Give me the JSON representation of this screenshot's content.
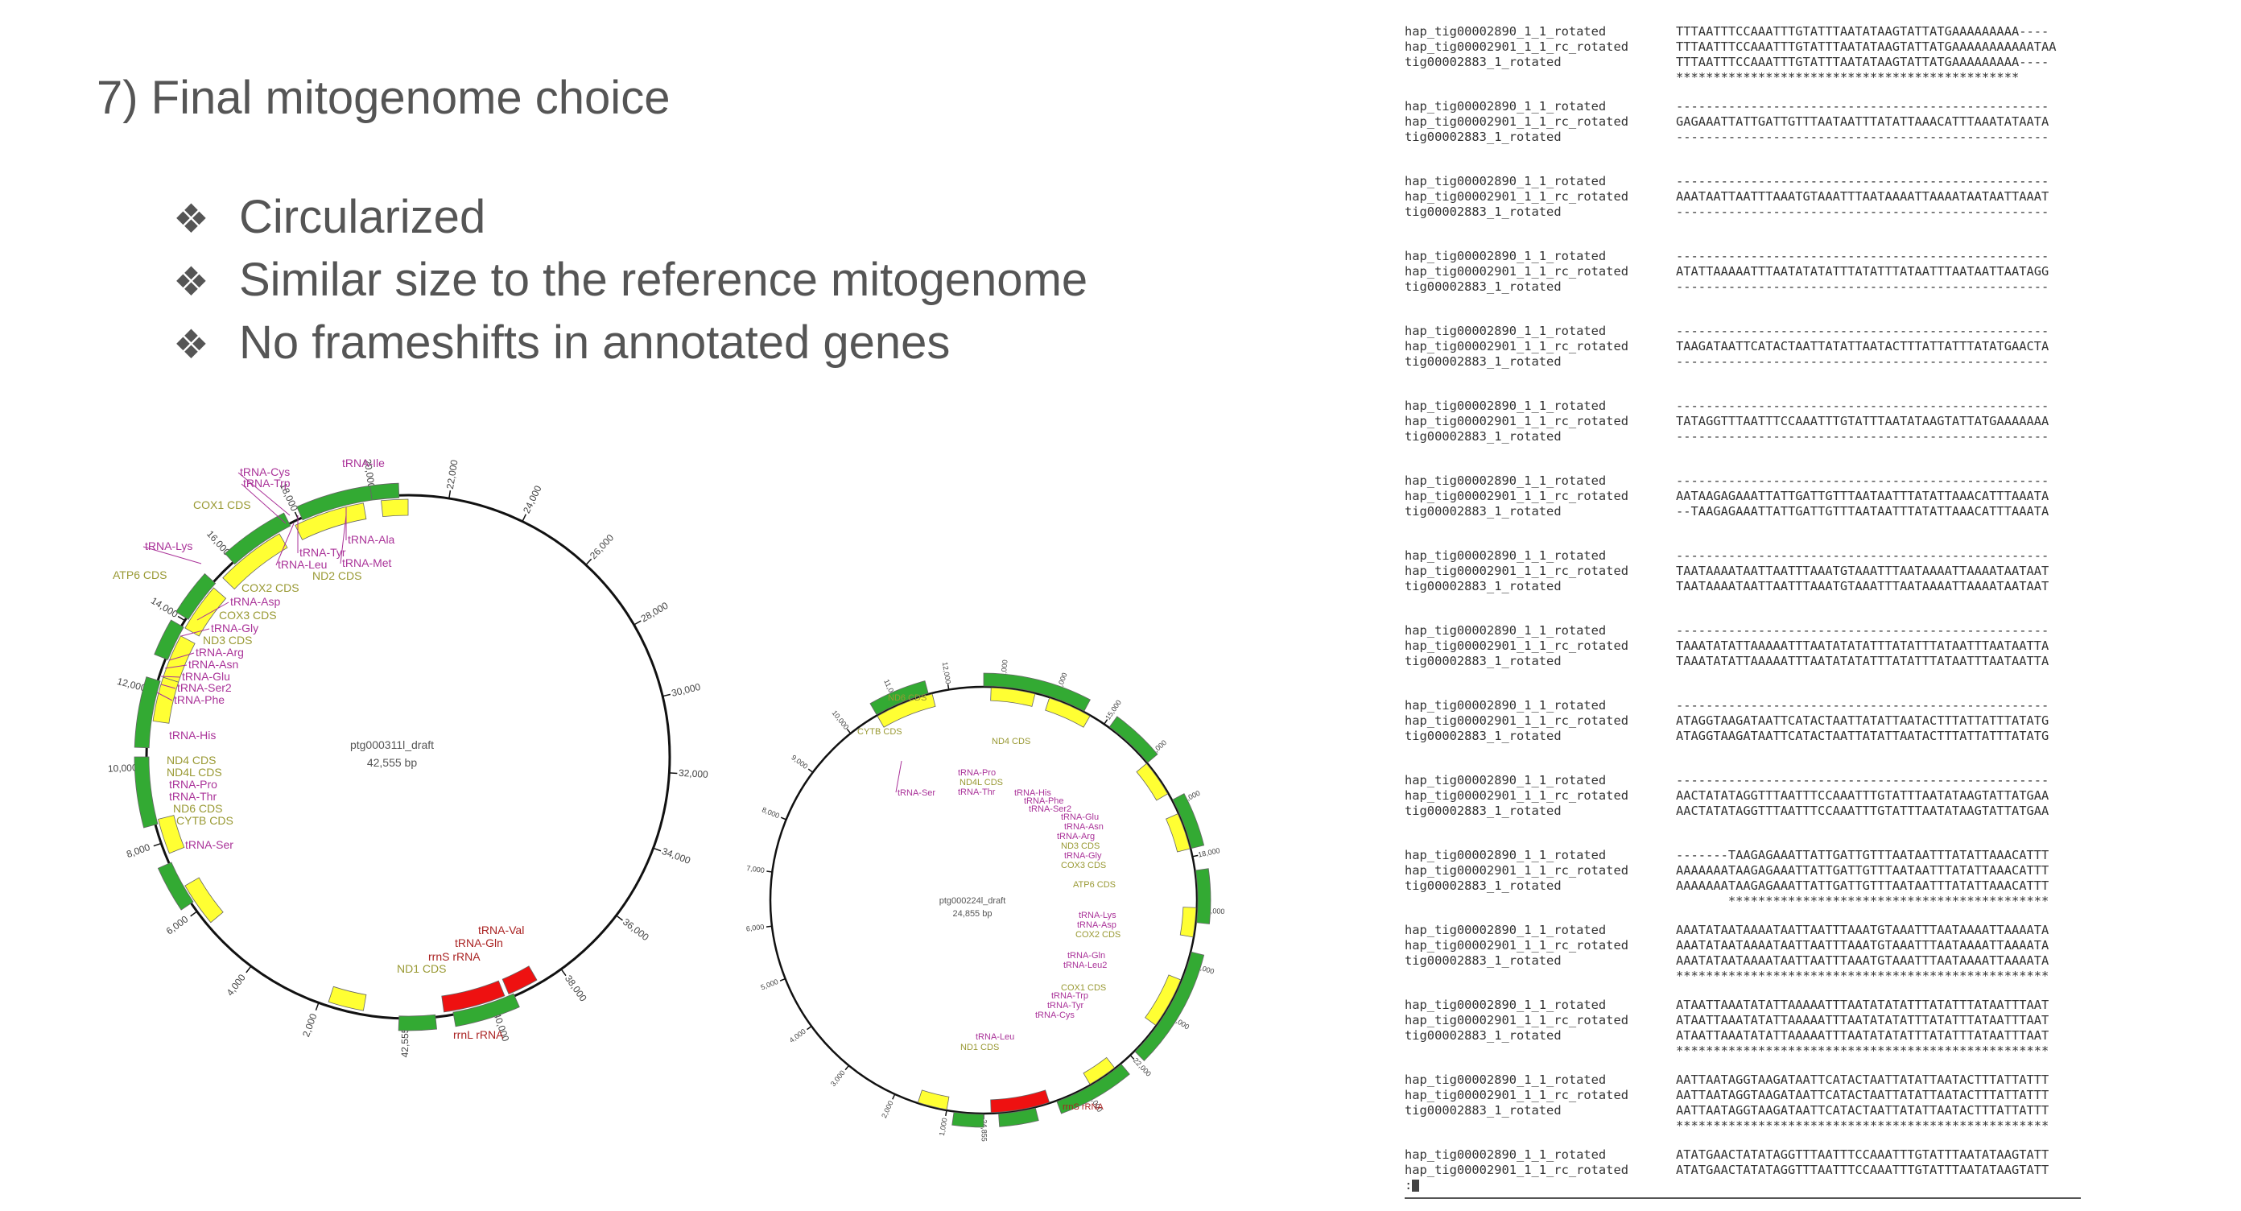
{
  "slide": {
    "title": "7) Final mitogenome choice",
    "bullet_glyph": "❖",
    "bullets": [
      "Circularized",
      "Similar size to the reference mitogenome",
      "No frameshifts in annotated genes"
    ]
  },
  "maps": [
    {
      "name": "ptg000311l_draft",
      "size": "42,555 bp",
      "ticks": [
        "2,000",
        "4,000",
        "6,000",
        "8,000",
        "10,000",
        "12,000",
        "14,000",
        "16,000",
        "18,000",
        "20,000",
        "22,000",
        "24,000",
        "26,000",
        "28,000",
        "30,000",
        "32,000",
        "34,000",
        "36,000",
        "38,000",
        "40,000",
        "42,555"
      ],
      "labels": [
        "tRNA-Ile",
        "tRNA-Cys",
        "tRNA-Trp",
        "COX1 CDS",
        "tRNA-Lys",
        "ATP6 CDS",
        "COX2 CDS",
        "tRNA-Asp",
        "COX3 CDS",
        "tRNA-Gly",
        "ND3 CDS",
        "tRNA-Arg",
        "tRNA-Asn",
        "tRNA-Glu",
        "tRNA-Ser2",
        "tRNA-Phe",
        "tRNA-His",
        "ND4 CDS",
        "ND4L CDS",
        "tRNA-Pro",
        "tRNA-Thr",
        "ND6 CDS",
        "CYTB CDS",
        "tRNA-Ser",
        "tRNA-Tyr",
        "tRNA-Leu",
        "tRNA-Ala",
        "tRNA-Met",
        "ND2 CDS",
        "tRNA-Val",
        "tRNA-Gln",
        "rrnS rRNA",
        "ND1 CDS",
        "rrnL rRNA"
      ]
    },
    {
      "name": "ptg000224l_draft",
      "size": "24,855 bp",
      "ticks": [
        "1,000",
        "2,000",
        "3,000",
        "4,000",
        "5,000",
        "6,000",
        "7,000",
        "8,000",
        "9,000",
        "10,000",
        "11,000",
        "12,000",
        "13,000",
        "14,000",
        "15,000",
        "16,000",
        "17,000",
        "18,000",
        "19,000",
        "20,000",
        "21,000",
        "22,000",
        "23,000",
        "24,855"
      ],
      "labels": [
        "ND6 CDS",
        "CYTB CDS",
        "ND4 CDS",
        "tRNA-Ser",
        "tRNA-Pro",
        "ND4L CDS",
        "tRNA-Thr",
        "tRNA-His",
        "tRNA-Phe",
        "tRNA-Ser2",
        "tRNA-Glu",
        "tRNA-Asn",
        "tRNA-Arg",
        "ND3 CDS",
        "tRNA-Gly",
        "COX3 CDS",
        "ATP6 CDS",
        "tRNA-Lys",
        "tRNA-Asp",
        "COX2 CDS",
        "tRNA-Gln",
        "tRNA-Leu2",
        "tRNA-Trp",
        "tRNA-Tyr",
        "tRNA-Cys",
        "COX1 CDS",
        "tRNA-Leu",
        "ND1 CDS",
        "rrnS rRNA"
      ]
    }
  ],
  "colors": {
    "gene_cds": "#ffff33",
    "gene_bar": "#33aa33",
    "rrna": "#ee1111",
    "trna_label": "#aa3399",
    "cds_label": "#999933",
    "rrna_label": "#aa2222"
  },
  "alignment": {
    "names": [
      "hap_tig00002890_1_1_rotated",
      "hap_tig00002901_1_1_rc_rotated",
      "tig00002883_1_rotated"
    ],
    "blocks": [
      {
        "seqs": [
          "TTTAATTTCCAAATTTGTATTTAATATAAGTATTATGAAAAAAAAA----",
          "TTTAATTTCCAAATTTGTATTTAATATAAGTATTATGAAAAAAAAAAATAA",
          "TTTAATTTCCAAATTTGTATTTAATATAAGTATTATGAAAAAAAAA----"
        ],
        "consensus": "**********************************************"
      },
      {
        "seqs": [
          "--------------------------------------------------",
          "GAGAAATTATTGATTGTTTAATAATTTATATTAAACATTTAAATATAATA",
          "--------------------------------------------------"
        ],
        "consensus": ""
      },
      {
        "seqs": [
          "--------------------------------------------------",
          "AAATAATTAATTTAAATGTAAATTTAATAAAATTAAAATAATAATTAAAT",
          "--------------------------------------------------"
        ],
        "consensus": ""
      },
      {
        "seqs": [
          "--------------------------------------------------",
          "ATATTAAAAATTTAATATATATTTATATTTATAATTTAATAATTAATAGG",
          "--------------------------------------------------"
        ],
        "consensus": ""
      },
      {
        "seqs": [
          "--------------------------------------------------",
          "TAAGATAATTCATACTAATTATATTAATACTTTATTATTTATATGAACTA",
          "--------------------------------------------------"
        ],
        "consensus": ""
      },
      {
        "seqs": [
          "--------------------------------------------------",
          "TATAGGTTTAATTTCCAAATTTGTATTTAATATAAGTATTATGAAAAAAA",
          "--------------------------------------------------"
        ],
        "consensus": ""
      },
      {
        "seqs": [
          "--------------------------------------------------",
          "AATAAGAGAAATTATTGATTGTTTAATAATTTATATTAAACATTTAAATA",
          "--TAAGAGAAATTATTGATTGTTTAATAATTTATATTAAACATTTAAATA"
        ],
        "consensus": ""
      },
      {
        "seqs": [
          "--------------------------------------------------",
          "TAATAAAATAATTAATTTAAATGTAAATTTAATAAAATTAAAATAATAAT",
          "TAATAAAATAATTAATTTAAATGTAAATTTAATAAAATTAAAATAATAAT"
        ],
        "consensus": ""
      },
      {
        "seqs": [
          "--------------------------------------------------",
          "TAAATATATTAAAAATTTAATATATATTTATATTTATAATTTAATAATTA",
          "TAAATATATTAAAAATTTAATATATATTTATATTTATAATTTAATAATTA"
        ],
        "consensus": ""
      },
      {
        "seqs": [
          "--------------------------------------------------",
          "ATAGGTAAGATAATTCATACTAATTATATTAATACTTTATTATTTATATG",
          "ATAGGTAAGATAATTCATACTAATTATATTAATACTTTATTATTTATATG"
        ],
        "consensus": ""
      },
      {
        "seqs": [
          "--------------------------------------------------",
          "AACTATATAGGTTTAATTTCCAAATTTGTATTTAATATAAGTATTATGAA",
          "AACTATATAGGTTTAATTTCCAAATTTGTATTTAATATAAGTATTATGAA"
        ],
        "consensus": ""
      },
      {
        "seqs": [
          "-------TAAGAGAAATTATTGATTGTTTAATAATTTATATTAAACATTT",
          "AAAAAAATAAGAGAAATTATTGATTGTTTAATAATTTATATTAAACATTT",
          "AAAAAAATAAGAGAAATTATTGATTGTTTAATAATTTATATTAAACATTT"
        ],
        "consensus": "       *******************************************"
      },
      {
        "seqs": [
          "AAATATAATAAAATAATTAATTTAAATGTAAATTTAATAAAATTAAAATA",
          "AAATATAATAAAATAATTAATTTAAATGTAAATTTAATAAAATTAAAATA",
          "AAATATAATAAAATAATTAATTTAAATGTAAATTTAATAAAATTAAAATA"
        ],
        "consensus": "**************************************************"
      },
      {
        "seqs": [
          "ATAATTAAATATATTAAAAATTTAATATATATTTATATTTATAATTTAAT",
          "ATAATTAAATATATTAAAAATTTAATATATATTTATATTTATAATTTAAT",
          "ATAATTAAATATATTAAAAATTTAATATATATTTATATTTATAATTTAAT"
        ],
        "consensus": "**************************************************"
      },
      {
        "seqs": [
          "AATTAATAGGTAAGATAATTCATACTAATTATATTAATACTTTATTATTT",
          "AATTAATAGGTAAGATAATTCATACTAATTATATTAATACTTTATTATTT",
          "AATTAATAGGTAAGATAATTCATACTAATTATATTAATACTTTATTATTT"
        ],
        "consensus": "**************************************************"
      },
      {
        "seqs": [
          "ATATGAACTATATAGGTTTAATTTCCAAATTTGTATTTAATATAAGTATT",
          "ATATGAACTATATAGGTTTAATTTCCAAATTTGTATTTAATATAAGTATT"
        ],
        "consensus": ""
      }
    ],
    "prompt": ":"
  }
}
